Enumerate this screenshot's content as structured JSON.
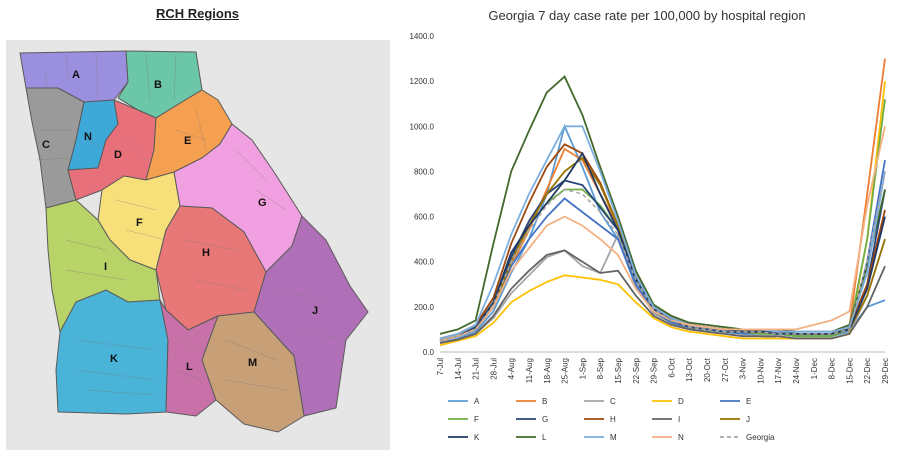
{
  "map": {
    "title": "RCH Regions",
    "regions": [
      {
        "id": "A",
        "color": "#9b8fe0"
      },
      {
        "id": "B",
        "color": "#6cc6a8"
      },
      {
        "id": "C",
        "color": "#9a9a9a"
      },
      {
        "id": "N",
        "color": "#3ea9d8"
      },
      {
        "id": "D",
        "color": "#e8707a"
      },
      {
        "id": "E",
        "color": "#f5a050"
      },
      {
        "id": "F",
        "color": "#f7e07a"
      },
      {
        "id": "G",
        "color": "#f0a0e0"
      },
      {
        "id": "H",
        "color": "#e87878"
      },
      {
        "id": "I",
        "color": "#b8d468"
      },
      {
        "id": "J",
        "color": "#b070b8"
      },
      {
        "id": "K",
        "color": "#4ab4d8"
      },
      {
        "id": "L",
        "color": "#c870a8"
      },
      {
        "id": "M",
        "color": "#c8a078"
      }
    ]
  },
  "chart_data": {
    "type": "line",
    "title": "Georgia 7 day case rate per 100,000 by hospital region",
    "xlabel": "",
    "ylabel": "",
    "ylim": [
      0,
      1400
    ],
    "yticks": [
      "0.0",
      "200.0",
      "400.0",
      "600.0",
      "800.0",
      "1000.0",
      "1200.0",
      "1400.0"
    ],
    "x_tick_labels": [
      "7-Jul",
      "14-Jul",
      "21-Jul",
      "28-Jul",
      "4-Aug",
      "11-Aug",
      "18-Aug",
      "25-Aug",
      "1-Sep",
      "8-Sep",
      "15-Sep",
      "22-Sep",
      "29-Sep",
      "6-Oct",
      "13-Oct",
      "20-Oct",
      "27-Oct",
      "3-Nov",
      "10-Nov",
      "17-Nov",
      "24-Nov",
      "1-Dec",
      "8-Dec",
      "15-Dec",
      "22-Dec",
      "29-Dec"
    ],
    "x": [
      "7-Jul",
      "14-Jul",
      "21-Jul",
      "28-Jul",
      "4-Aug",
      "11-Aug",
      "18-Aug",
      "25-Aug",
      "1-Sep",
      "8-Sep",
      "15-Sep",
      "22-Sep",
      "29-Sep",
      "6-Oct",
      "13-Oct",
      "20-Oct",
      "27-Oct",
      "3-Nov",
      "10-Nov",
      "17-Nov",
      "24-Nov",
      "1-Dec",
      "8-Dec",
      "15-Dec",
      "22-Dec",
      "29-Dec"
    ],
    "legend_position": "bottom",
    "grid": false,
    "series": [
      {
        "name": "A",
        "color": "#5b9bd5",
        "dashed": false,
        "values": [
          40,
          60,
          90,
          180,
          350,
          500,
          700,
          1000,
          820,
          620,
          500,
          290,
          180,
          140,
          110,
          100,
          90,
          90,
          90,
          80,
          70,
          70,
          70,
          90,
          200,
          230
        ]
      },
      {
        "name": "B",
        "color": "#ed7d31",
        "dashed": false,
        "values": [
          50,
          70,
          100,
          200,
          380,
          540,
          720,
          900,
          850,
          700,
          560,
          330,
          200,
          150,
          120,
          110,
          100,
          90,
          90,
          80,
          80,
          80,
          80,
          110,
          700,
          1300
        ]
      },
      {
        "name": "C",
        "color": "#a5a5a5",
        "dashed": false,
        "values": [
          40,
          55,
          80,
          150,
          260,
          340,
          420,
          450,
          380,
          350,
          520,
          300,
          170,
          130,
          100,
          90,
          80,
          70,
          70,
          60,
          60,
          60,
          60,
          80,
          250,
          500
        ]
      },
      {
        "name": "D",
        "color": "#ffc000",
        "dashed": false,
        "values": [
          30,
          50,
          70,
          130,
          220,
          270,
          310,
          340,
          330,
          320,
          300,
          220,
          150,
          110,
          90,
          80,
          70,
          60,
          60,
          60,
          60,
          60,
          60,
          80,
          500,
          1200
        ]
      },
      {
        "name": "E",
        "color": "#4472c4",
        "dashed": false,
        "values": [
          50,
          70,
          100,
          200,
          380,
          500,
          600,
          680,
          620,
          560,
          500,
          300,
          180,
          130,
          110,
          100,
          90,
          80,
          80,
          80,
          70,
          70,
          70,
          100,
          400,
          850
        ]
      },
      {
        "name": "F",
        "color": "#70ad47",
        "dashed": false,
        "values": [
          50,
          70,
          110,
          220,
          420,
          560,
          660,
          720,
          720,
          650,
          540,
          320,
          190,
          140,
          110,
          100,
          90,
          90,
          80,
          80,
          70,
          70,
          70,
          100,
          500,
          1120
        ]
      },
      {
        "name": "G",
        "color": "#264478",
        "dashed": false,
        "values": [
          50,
          70,
          110,
          220,
          420,
          580,
          700,
          760,
          740,
          640,
          540,
          320,
          190,
          140,
          110,
          100,
          90,
          90,
          90,
          80,
          80,
          80,
          80,
          100,
          300,
          720
        ]
      },
      {
        "name": "H",
        "color": "#9e480e",
        "dashed": false,
        "values": [
          60,
          80,
          120,
          240,
          480,
          660,
          820,
          920,
          880,
          750,
          560,
          340,
          200,
          150,
          120,
          110,
          100,
          90,
          90,
          90,
          80,
          80,
          80,
          110,
          300,
          630
        ]
      },
      {
        "name": "I",
        "color": "#636363",
        "dashed": false,
        "values": [
          40,
          55,
          80,
          160,
          280,
          360,
          430,
          450,
          400,
          350,
          360,
          250,
          160,
          120,
          100,
          90,
          80,
          70,
          70,
          70,
          60,
          60,
          60,
          80,
          200,
          380
        ]
      },
      {
        "name": "J",
        "color": "#997300",
        "dashed": false,
        "values": [
          50,
          70,
          100,
          200,
          400,
          560,
          700,
          800,
          860,
          740,
          560,
          340,
          200,
          150,
          120,
          110,
          100,
          90,
          90,
          90,
          80,
          80,
          80,
          100,
          250,
          500
        ]
      },
      {
        "name": "K",
        "color": "#1f3864",
        "dashed": false,
        "values": [
          50,
          70,
          100,
          220,
          440,
          560,
          660,
          760,
          880,
          700,
          540,
          330,
          200,
          150,
          120,
          110,
          100,
          90,
          90,
          90,
          80,
          80,
          80,
          100,
          280,
          600
        ]
      },
      {
        "name": "L",
        "color": "#43682b",
        "dashed": false,
        "values": [
          80,
          100,
          140,
          480,
          800,
          980,
          1150,
          1220,
          1050,
          820,
          600,
          360,
          210,
          160,
          130,
          120,
          110,
          100,
          100,
          100,
          90,
          90,
          90,
          120,
          380,
          720
        ]
      },
      {
        "name": "M",
        "color": "#7cafdd",
        "dashed": false,
        "values": [
          60,
          80,
          120,
          300,
          520,
          700,
          850,
          1000,
          1000,
          800,
          580,
          340,
          200,
          150,
          120,
          110,
          100,
          100,
          100,
          90,
          90,
          90,
          90,
          110,
          350,
          800
        ]
      },
      {
        "name": "N",
        "color": "#f4b183",
        "dashed": false,
        "values": [
          50,
          70,
          100,
          200,
          360,
          460,
          560,
          600,
          560,
          500,
          430,
          280,
          180,
          140,
          120,
          110,
          100,
          100,
          100,
          100,
          100,
          120,
          140,
          180,
          650,
          1000
        ]
      },
      {
        "name": "Georgia",
        "color": "#a5a5a5",
        "dashed": true,
        "values": [
          50,
          70,
          100,
          210,
          400,
          540,
          650,
          720,
          700,
          620,
          520,
          320,
          190,
          140,
          110,
          100,
          90,
          90,
          90,
          80,
          80,
          80,
          80,
          100,
          400,
          800
        ]
      }
    ]
  }
}
